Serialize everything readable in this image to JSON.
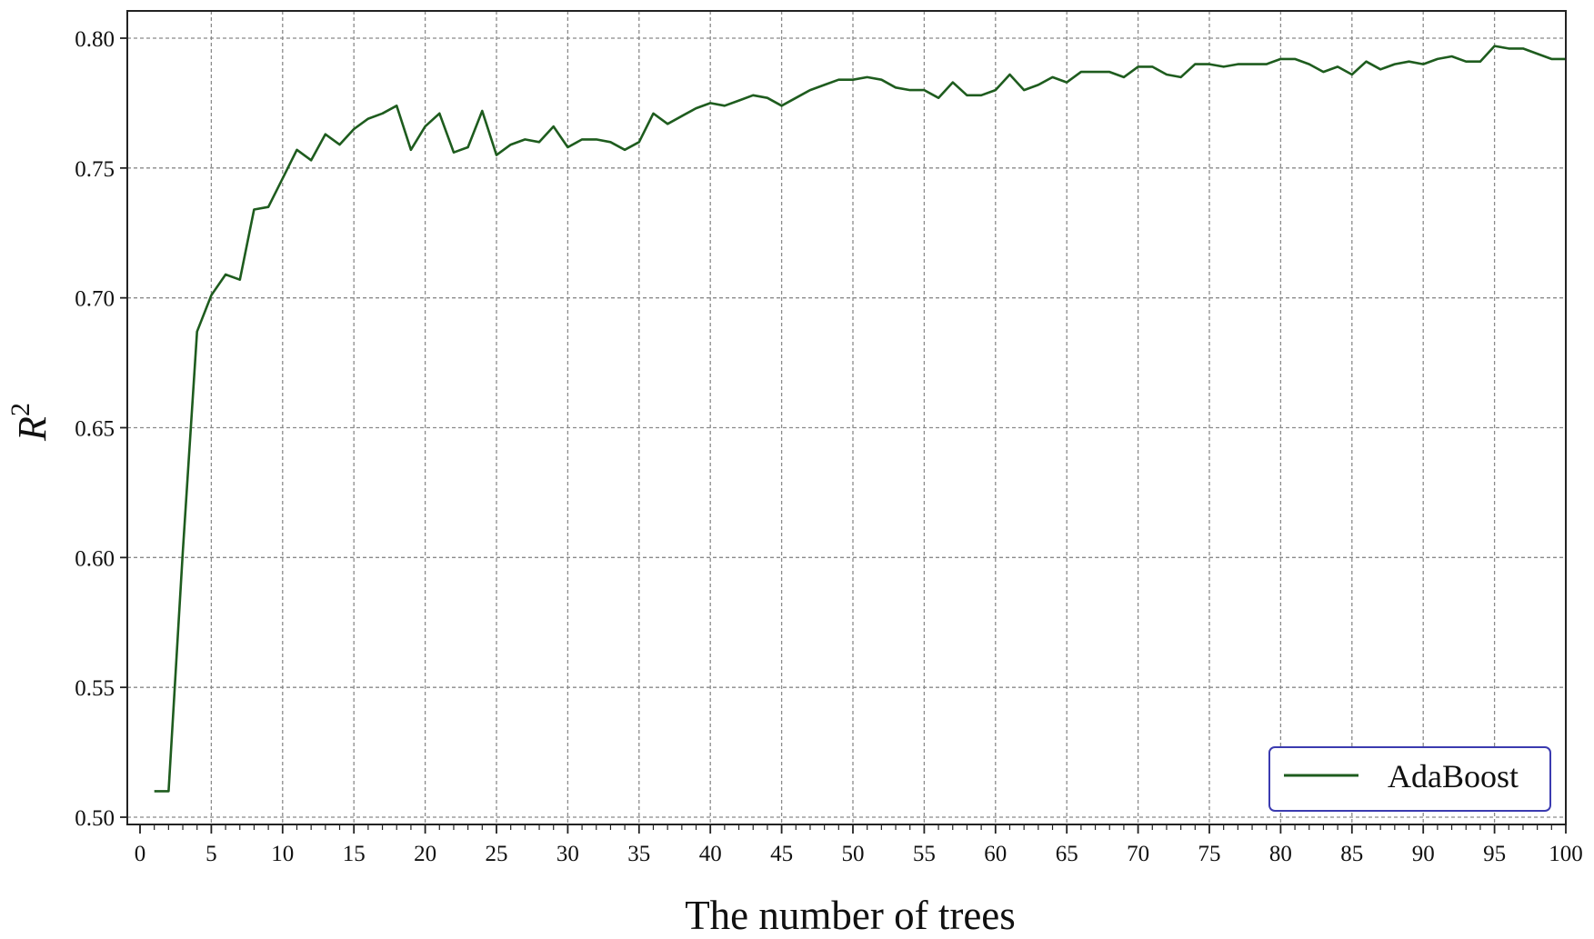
{
  "colors": {
    "series_line": "#1e5c1e",
    "grid": "#8a8a8a",
    "axes": "#222222",
    "legend_border": "#3b3bb0"
  },
  "chart_data": {
    "type": "line",
    "title": "",
    "xlabel": "The number of trees",
    "ylabel_base": "R",
    "ylabel_sup": "2",
    "xlim": [
      0,
      100
    ],
    "ylim": [
      0.495,
      0.81
    ],
    "xticks": [
      0,
      5,
      10,
      15,
      20,
      25,
      30,
      35,
      40,
      45,
      50,
      55,
      60,
      65,
      70,
      75,
      80,
      85,
      90,
      95,
      100
    ],
    "xtick_labels": [
      "0",
      "5",
      "10",
      "15",
      "20",
      "25",
      "30",
      "35",
      "40",
      "45",
      "50",
      "55",
      "60",
      "65",
      "70",
      "75",
      "80",
      "85",
      "90",
      "95",
      "100"
    ],
    "yticks": [
      0.5,
      0.55,
      0.6,
      0.65,
      0.7,
      0.75,
      0.8
    ],
    "ytick_labels": [
      "0.50",
      "0.55",
      "0.60",
      "0.65",
      "0.70",
      "0.75",
      "0.80"
    ],
    "grid": true,
    "legend_position": "lower-right",
    "series": [
      {
        "name": "AdaBoost",
        "x": [
          1,
          2,
          3,
          4,
          5,
          6,
          7,
          8,
          9,
          10,
          11,
          12,
          13,
          14,
          15,
          16,
          17,
          18,
          19,
          20,
          21,
          22,
          23,
          24,
          25,
          26,
          27,
          28,
          29,
          30,
          31,
          32,
          33,
          34,
          35,
          36,
          37,
          38,
          39,
          40,
          41,
          42,
          43,
          44,
          45,
          46,
          47,
          48,
          49,
          50,
          51,
          52,
          53,
          54,
          55,
          56,
          57,
          58,
          59,
          60,
          61,
          62,
          63,
          64,
          65,
          66,
          67,
          68,
          69,
          70,
          71,
          72,
          73,
          74,
          75,
          76,
          77,
          78,
          79,
          80,
          81,
          82,
          83,
          84,
          85,
          86,
          87,
          88,
          89,
          90,
          91,
          92,
          93,
          94,
          95,
          96,
          97,
          98,
          99,
          100
        ],
        "y": [
          0.51,
          0.51,
          0.602,
          0.687,
          0.701,
          0.709,
          0.707,
          0.734,
          0.735,
          0.746,
          0.757,
          0.753,
          0.763,
          0.759,
          0.765,
          0.769,
          0.771,
          0.774,
          0.757,
          0.766,
          0.771,
          0.756,
          0.758,
          0.772,
          0.755,
          0.759,
          0.761,
          0.76,
          0.766,
          0.758,
          0.761,
          0.761,
          0.76,
          0.757,
          0.76,
          0.771,
          0.767,
          0.77,
          0.773,
          0.775,
          0.774,
          0.776,
          0.778,
          0.777,
          0.774,
          0.777,
          0.78,
          0.782,
          0.784,
          0.784,
          0.785,
          0.784,
          0.781,
          0.78,
          0.78,
          0.777,
          0.783,
          0.778,
          0.778,
          0.78,
          0.786,
          0.78,
          0.782,
          0.785,
          0.783,
          0.787,
          0.787,
          0.787,
          0.785,
          0.789,
          0.789,
          0.786,
          0.785,
          0.79,
          0.79,
          0.789,
          0.79,
          0.79,
          0.79,
          0.792,
          0.792,
          0.79,
          0.787,
          0.789,
          0.786,
          0.791,
          0.788,
          0.79,
          0.791,
          0.79,
          0.792,
          0.793,
          0.791,
          0.791,
          0.797,
          0.796,
          0.796,
          0.794,
          0.792,
          0.792
        ]
      }
    ]
  }
}
